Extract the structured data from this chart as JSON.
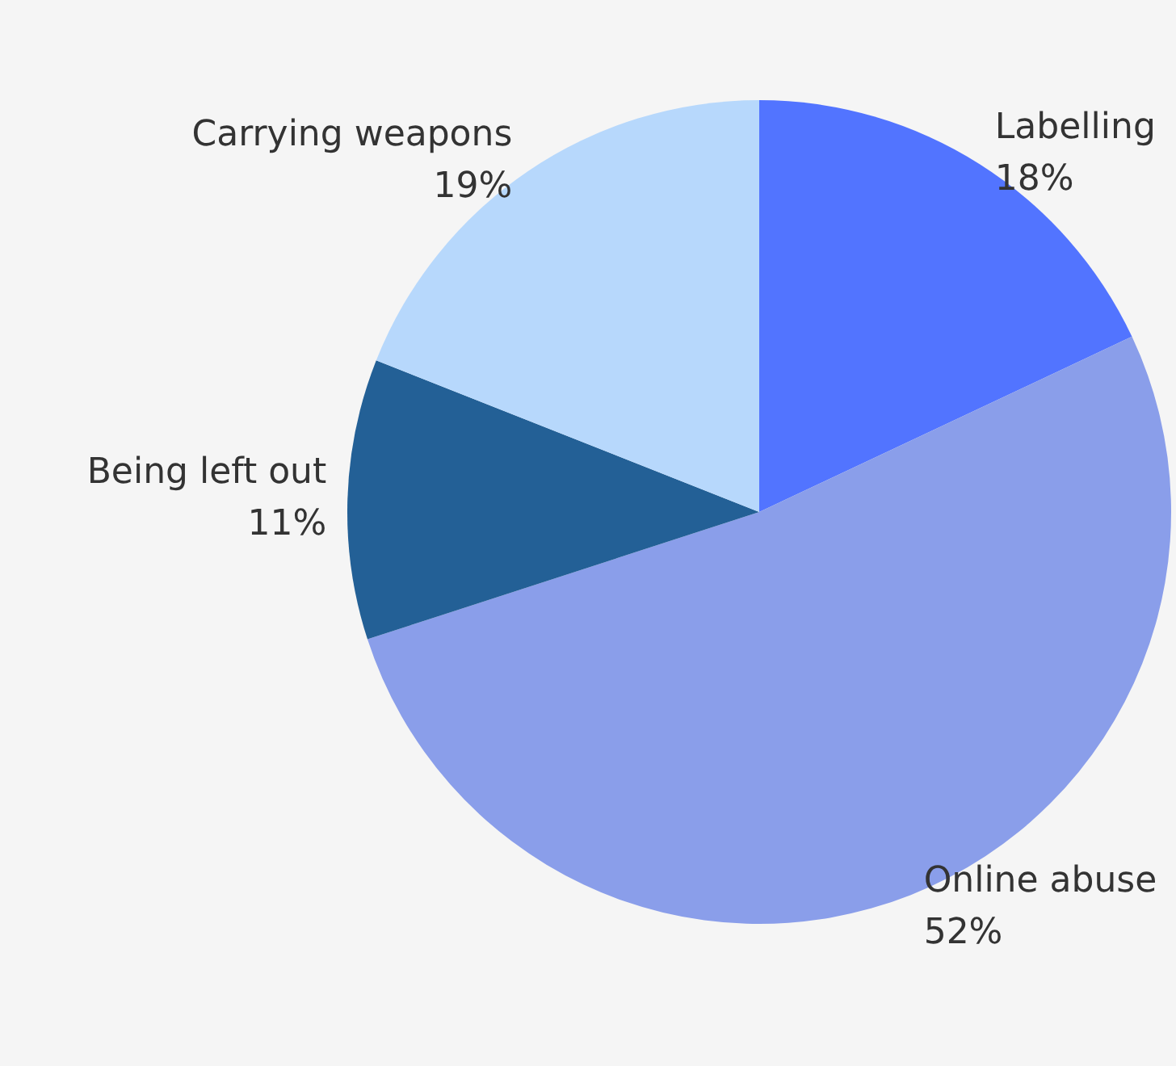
{
  "chart_data": {
    "type": "pie",
    "categories": [
      "Labelling",
      "Online abuse",
      "Being left out",
      "Carrying weapons"
    ],
    "values": [
      18,
      52,
      11,
      19
    ],
    "colors": [
      "#5274ff",
      "#8a9eea",
      "#236096",
      "#b7d8fc"
    ],
    "value_labels": [
      "18%",
      "52%",
      "11%",
      "19%"
    ],
    "legend": false
  }
}
